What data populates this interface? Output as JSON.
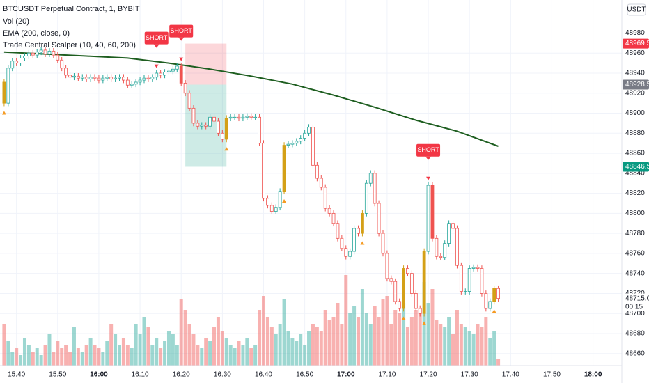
{
  "chart_data": {
    "type": "candlestick",
    "title": "BTCUSDT Perpetual Contract, 1, BYBIT",
    "indicators": [
      "Vol (20)",
      "EMA (200, close, 0)",
      "Trade Central Scalper (10, 40, 60, 200)"
    ],
    "currency": "USDT",
    "x": [
      "15:37",
      "15:38",
      "15:39",
      "15:40",
      "15:41",
      "15:42",
      "15:43",
      "15:44",
      "15:45",
      "15:46",
      "15:47",
      "15:48",
      "15:49",
      "15:50",
      "15:51",
      "15:52",
      "15:53",
      "15:54",
      "15:55",
      "15:56",
      "15:57",
      "15:58",
      "15:59",
      "16:00",
      "16:01",
      "16:02",
      "16:03",
      "16:04",
      "16:05",
      "16:06",
      "16:07",
      "16:08",
      "16:09",
      "16:10",
      "16:11",
      "16:12",
      "16:13",
      "16:14",
      "16:15",
      "16:16",
      "16:17",
      "16:18",
      "16:19",
      "16:20",
      "16:21",
      "16:22",
      "16:23",
      "16:24",
      "16:25",
      "16:26",
      "16:27",
      "16:28",
      "16:29",
      "16:30",
      "16:31",
      "16:32",
      "16:33",
      "16:34",
      "16:35",
      "16:36",
      "16:37",
      "16:38",
      "16:39",
      "16:40",
      "16:41",
      "16:42",
      "16:43",
      "16:44",
      "16:45",
      "16:46",
      "16:47",
      "16:48",
      "16:49",
      "16:50",
      "16:51",
      "16:52",
      "16:53",
      "16:54",
      "16:55",
      "16:56",
      "16:57",
      "16:58",
      "16:59",
      "17:00",
      "17:01",
      "17:02",
      "17:03",
      "17:04",
      "17:05",
      "17:06",
      "17:07",
      "17:08",
      "17:09",
      "17:10",
      "17:11",
      "17:12",
      "17:13",
      "17:14",
      "17:15",
      "17:16",
      "17:17",
      "17:18",
      "17:19",
      "17:20",
      "17:21",
      "17:22",
      "17:23",
      "17:24",
      "17:25",
      "17:26",
      "17:27",
      "17:28",
      "17:29",
      "17:30",
      "17:31",
      "17:32",
      "17:33",
      "17:34",
      "17:35",
      "17:36",
      "17:37"
    ],
    "open": [
      48931,
      48910,
      48945,
      48952,
      48950,
      48955,
      48957,
      48960,
      48958,
      48961,
      48963,
      48959,
      48962,
      48958,
      48953,
      48945,
      48938,
      48936,
      48937,
      48935,
      48936,
      48934,
      48936,
      48935,
      48933,
      48935,
      48936,
      48934,
      48935,
      48936,
      48933,
      48928,
      48929,
      48931,
      48933,
      48935,
      48934,
      48936,
      48940,
      48938,
      48941,
      48942,
      48944,
      48947,
      48930,
      48920,
      48905,
      48890,
      48887,
      48888,
      48887,
      48896,
      48892,
      48880,
      48874,
      48895,
      48896,
      48896,
      48895,
      48896,
      48897,
      48896,
      48896,
      48870,
      48815,
      48808,
      48802,
      48806,
      48822,
      48868,
      48869,
      48870,
      48872,
      48875,
      48880,
      48886,
      48848,
      48835,
      48826,
      48805,
      48800,
      48790,
      48775,
      48765,
      48757,
      48762,
      48785,
      48780,
      48800,
      48830,
      48840,
      48810,
      48780,
      48760,
      48735,
      48732,
      48712,
      48705,
      48745,
      48740,
      48720,
      48705,
      48700,
      48762,
      48828,
      48775,
      48757,
      48756,
      48770,
      48790,
      48785,
      48748,
      48722,
      48722,
      48745,
      48746,
      48745,
      48720,
      48705,
      48712,
      48725
    ],
    "high": [
      48934,
      48948,
      48955,
      48955,
      48958,
      48960,
      48963,
      48963,
      48964,
      48966,
      48966,
      48965,
      48965,
      48961,
      48956,
      48948,
      48941,
      48940,
      48940,
      48939,
      48939,
      48939,
      48939,
      48938,
      48938,
      48939,
      48939,
      48938,
      48939,
      48939,
      48936,
      48932,
      48934,
      48936,
      48938,
      48938,
      48939,
      48943,
      48943,
      48944,
      48945,
      48947,
      48950,
      48950,
      48933,
      48923,
      48908,
      48893,
      48891,
      48891,
      48899,
      48899,
      48895,
      48883,
      48898,
      48899,
      48899,
      48899,
      48899,
      48900,
      48900,
      48899,
      48899,
      48873,
      48818,
      48811,
      48809,
      48825,
      48871,
      48872,
      48873,
      48875,
      48878,
      48883,
      48889,
      48889,
      48851,
      48838,
      48829,
      48808,
      48803,
      48793,
      48778,
      48768,
      48765,
      48788,
      48788,
      48803,
      48833,
      48843,
      48843,
      48813,
      48783,
      48763,
      48738,
      48735,
      48715,
      48748,
      48748,
      48743,
      48723,
      48708,
      48765,
      48831,
      48831,
      48778,
      48760,
      48773,
      48793,
      48793,
      48788,
      48751,
      48725,
      48748,
      48749,
      48749,
      48748,
      48723,
      48715,
      48728,
      48728
    ],
    "low": [
      48907,
      48907,
      48942,
      48947,
      48947,
      48952,
      48954,
      48955,
      48955,
      48958,
      48956,
      48956,
      48955,
      48950,
      48942,
      48935,
      48933,
      48933,
      48932,
      48932,
      48931,
      48931,
      48932,
      48930,
      48930,
      48932,
      48931,
      48931,
      48932,
      48930,
      48925,
      48925,
      48926,
      48928,
      48930,
      48931,
      48931,
      48933,
      48935,
      48935,
      48938,
      48939,
      48941,
      48927,
      48917,
      48902,
      48887,
      48884,
      48884,
      48884,
      48884,
      48889,
      48877,
      48871,
      48871,
      48892,
      48893,
      48892,
      48892,
      48893,
      48893,
      48893,
      48867,
      48812,
      48805,
      48799,
      48799,
      48803,
      48819,
      48865,
      48866,
      48867,
      48869,
      48872,
      48877,
      48845,
      48832,
      48823,
      48802,
      48797,
      48787,
      48772,
      48762,
      48754,
      48754,
      48759,
      48777,
      48777,
      48797,
      48827,
      48807,
      48777,
      48757,
      48732,
      48729,
      48709,
      48702,
      48702,
      48737,
      48717,
      48702,
      48697,
      48697,
      48759,
      48772,
      48754,
      48753,
      48753,
      48767,
      48782,
      48745,
      48719,
      48719,
      48719,
      48742,
      48742,
      48717,
      48702,
      48702,
      48709,
      48712
    ],
    "close": [
      48910,
      48945,
      48952,
      48950,
      48955,
      48957,
      48960,
      48958,
      48961,
      48963,
      48959,
      48962,
      48958,
      48953,
      48945,
      48938,
      48936,
      48937,
      48935,
      48936,
      48934,
      48936,
      48935,
      48933,
      48935,
      48936,
      48934,
      48935,
      48936,
      48933,
      48928,
      48929,
      48931,
      48933,
      48935,
      48934,
      48936,
      48940,
      48938,
      48941,
      48942,
      48944,
      48947,
      48930,
      48920,
      48905,
      48890,
      48887,
      48888,
      48887,
      48896,
      48892,
      48880,
      48874,
      48895,
      48896,
      48896,
      48895,
      48896,
      48897,
      48896,
      48896,
      48870,
      48815,
      48808,
      48802,
      48806,
      48822,
      48868,
      48869,
      48870,
      48872,
      48875,
      48880,
      48886,
      48848,
      48835,
      48826,
      48805,
      48800,
      48790,
      48775,
      48765,
      48757,
      48762,
      48785,
      48780,
      48800,
      48830,
      48840,
      48810,
      48780,
      48760,
      48735,
      48732,
      48712,
      48705,
      48745,
      48740,
      48720,
      48705,
      48700,
      48762,
      48828,
      48775,
      48757,
      48756,
      48770,
      48790,
      48785,
      48748,
      48722,
      48722,
      48745,
      48746,
      48745,
      48720,
      48705,
      48712,
      48725,
      48715
    ],
    "volume": [
      60,
      35,
      20,
      25,
      15,
      40,
      30,
      20,
      25,
      15,
      30,
      45,
      20,
      35,
      25,
      30,
      20,
      55,
      25,
      20,
      30,
      40,
      30,
      25,
      20,
      35,
      60,
      45,
      30,
      40,
      30,
      25,
      60,
      45,
      70,
      55,
      30,
      40,
      25,
      35,
      50,
      45,
      30,
      95,
      80,
      60,
      45,
      30,
      25,
      40,
      35,
      55,
      70,
      50,
      40,
      30,
      25,
      35,
      30,
      40,
      25,
      30,
      80,
      100,
      70,
      55,
      45,
      60,
      95,
      50,
      40,
      35,
      45,
      30,
      50,
      60,
      55,
      50,
      80,
      65,
      70,
      90,
      60,
      130,
      75,
      85,
      70,
      110,
      75,
      60,
      85,
      70,
      95,
      100,
      60,
      80,
      75,
      90,
      55,
      70,
      80,
      75,
      120,
      90,
      110,
      65,
      60,
      55,
      70,
      45,
      80,
      60,
      55,
      50,
      45,
      60,
      55,
      70,
      40,
      50,
      10
    ],
    "up_color": "#26a69a",
    "down_color": "#ef5350",
    "highlight_color": "#d4a017",
    "highlighted_x": [
      "15:37",
      "16:31",
      "16:45",
      "17:04",
      "17:14",
      "17:19",
      "17:36"
    ],
    "filled_x": [
      "16:20",
      "17:21"
    ],
    "ema": {
      "color": "#1e5e20",
      "x": [
        "15:37",
        "15:47",
        "15:57",
        "16:07",
        "16:17",
        "16:27",
        "16:37",
        "16:47",
        "16:57",
        "17:07",
        "17:17",
        "17:27",
        "17:37"
      ],
      "values": [
        48961,
        48959,
        48957,
        48955,
        48950,
        48944,
        48937,
        48929,
        48918,
        48906,
        48893,
        48882,
        48867
      ]
    },
    "annotations": [
      {
        "x": "16:14",
        "text": "SHORT"
      },
      {
        "x": "16:20",
        "text": "SHORT"
      },
      {
        "x": "17:20",
        "text": "SHORT"
      }
    ],
    "position": {
      "x_start": "16:21",
      "x_end": "16:31",
      "entry": 48928.5,
      "stop": 48969.5,
      "target": 48846.5
    },
    "last_price": {
      "value": 48715,
      "label": "48715.0"
    },
    "countdown": "00:15",
    "xlim": [
      "15:36",
      "18:07"
    ],
    "xticks": [
      "15:40",
      "15:50",
      "16:00",
      "16:10",
      "16:20",
      "16:30",
      "16:40",
      "16:50",
      "17:00",
      "17:10",
      "17:20",
      "17:30",
      "17:40",
      "17:50",
      "18:00"
    ],
    "ylim": [
      48648,
      49013
    ],
    "yticks": [
      48980,
      48960,
      48940,
      48920,
      48900,
      48880,
      48860,
      48840,
      48820,
      48800,
      48780,
      48760,
      48740,
      48720,
      48700,
      48680,
      48660
    ],
    "grid": true
  }
}
